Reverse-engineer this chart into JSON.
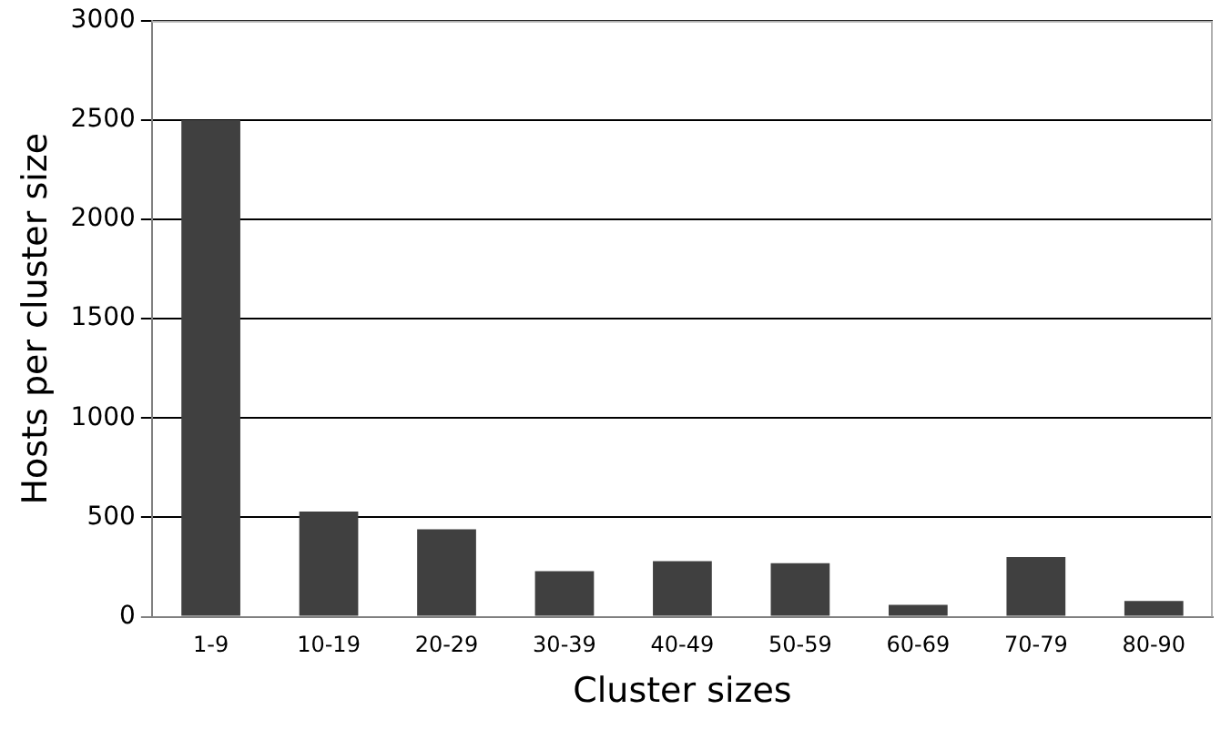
{
  "chart_data": {
    "type": "bar",
    "xlabel": "Cluster sizes",
    "ylabel": "Hosts per cluster size",
    "categories": [
      "1-9",
      "10-19",
      "20-29",
      "30-39",
      "40-49",
      "50-59",
      "60-69",
      "70-79",
      "80-90"
    ],
    "values": [
      2500,
      530,
      440,
      230,
      280,
      270,
      60,
      300,
      80
    ],
    "color": "#404040",
    "ylim": [
      0,
      3000
    ],
    "yticks": [
      0,
      500,
      1000,
      1500,
      2000,
      2500,
      3000
    ],
    "grid": "y"
  }
}
